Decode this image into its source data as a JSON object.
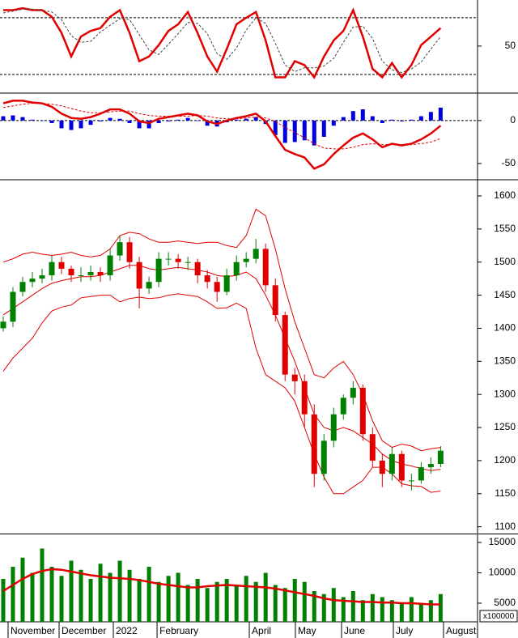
{
  "chart_data": [
    {
      "type": "line",
      "xlim": [
        -0.33,
        48.8
      ],
      "ylim": [
        2,
        97
      ],
      "yticks": [
        50
      ],
      "ref_lines": [
        80,
        20
      ],
      "series": [
        {
          "color": "#e00000",
          "style": "solid",
          "values": [
            88,
            88,
            90,
            88,
            88,
            81,
            64,
            39,
            60,
            66,
            69,
            81,
            88,
            64,
            34,
            39,
            51,
            66,
            73,
            86,
            64,
            39,
            23,
            47,
            73,
            80,
            86,
            56,
            17,
            17,
            34,
            30,
            17,
            39,
            56,
            66,
            88,
            60,
            26,
            17,
            32,
            17,
            30,
            51,
            60,
            69
          ]
        },
        {
          "color": "#444444",
          "style": "dashed",
          "values": [
            85,
            87,
            89,
            89,
            88,
            86,
            78,
            61,
            54,
            55,
            65,
            72,
            79,
            78,
            62,
            46,
            41,
            52,
            63,
            75,
            74,
            63,
            42,
            36,
            48,
            67,
            80,
            74,
            53,
            30,
            23,
            27,
            27,
            29,
            37,
            54,
            70,
            71,
            58,
            34,
            25,
            22,
            26,
            33,
            47,
            60
          ]
        }
      ]
    },
    {
      "type": "combo",
      "xlim": [
        -0.33,
        48.8
      ],
      "ylim": [
        -67,
        30
      ],
      "yticks": [
        0,
        -50
      ],
      "ref_lines": [
        0
      ],
      "bars": {
        "color": "#0000dd",
        "values": [
          5,
          6,
          4,
          1,
          0,
          -3,
          -9,
          -11,
          -9,
          -5,
          -1,
          3,
          2,
          -3,
          -9,
          -9,
          -3,
          -1,
          1,
          3,
          0,
          -6,
          -7,
          -2,
          1,
          2,
          4,
          -4,
          -17,
          -26,
          -25,
          -23,
          -29,
          -19,
          -6,
          4,
          11,
          13,
          5,
          -3,
          1,
          -1,
          1,
          5,
          10,
          15
        ]
      },
      "series": [
        {
          "color": "#e00000",
          "style": "solid",
          "values": [
            20,
            23,
            23,
            21,
            20,
            16,
            8,
            3,
            2,
            4,
            8,
            13,
            13,
            8,
            -1,
            -3,
            2,
            4,
            6,
            8,
            6,
            -1,
            -4,
            0,
            3,
            5,
            8,
            -1,
            -18,
            -34,
            -39,
            -43,
            -56,
            -51,
            -39,
            -29,
            -20,
            -15,
            -22,
            -31,
            -27,
            -29,
            -27,
            -22,
            -15,
            -6
          ]
        },
        {
          "color": "#e00000",
          "style": "dashed",
          "values": [
            15,
            17,
            19,
            20,
            20,
            19,
            17,
            14,
            11,
            9,
            9,
            10,
            11,
            11,
            8,
            6,
            5,
            5,
            5,
            5,
            6,
            5,
            3,
            2,
            2,
            3,
            4,
            3,
            -1,
            -8,
            -14,
            -20,
            -27,
            -32,
            -33,
            -33,
            -31,
            -28,
            -27,
            -28,
            -28,
            -28,
            -28,
            -27,
            -25,
            -21
          ]
        }
      ]
    },
    {
      "type": "candlestick",
      "xlim": [
        -0.33,
        48.8
      ],
      "ylim": [
        1091,
        1622
      ],
      "yticks": [
        1100,
        1150,
        1200,
        1250,
        1300,
        1350,
        1400,
        1450,
        1500,
        1550,
        1600
      ],
      "up_color": "#008000",
      "down_color": "#e00000",
      "open": [
        1400,
        1410,
        1455,
        1470,
        1475,
        1480,
        1500,
        1490,
        1480,
        1480,
        1485,
        1480,
        1510,
        1530,
        1500,
        1460,
        1470,
        1505,
        1505,
        1500,
        1500,
        1480,
        1470,
        1455,
        1480,
        1500,
        1505,
        1520,
        1465,
        1420,
        1330,
        1320,
        1270,
        1180,
        1230,
        1270,
        1295,
        1310,
        1240,
        1200,
        1180,
        1210,
        1170,
        1170,
        1190,
        1195
      ],
      "high": [
        1418,
        1462,
        1478,
        1485,
        1490,
        1510,
        1508,
        1495,
        1492,
        1495,
        1492,
        1520,
        1540,
        1538,
        1508,
        1478,
        1515,
        1515,
        1512,
        1508,
        1505,
        1488,
        1478,
        1490,
        1510,
        1515,
        1535,
        1528,
        1475,
        1425,
        1340,
        1330,
        1285,
        1240,
        1280,
        1300,
        1320,
        1315,
        1250,
        1210,
        1220,
        1215,
        1180,
        1198,
        1205,
        1222
      ],
      "low": [
        1395,
        1402,
        1448,
        1462,
        1468,
        1472,
        1482,
        1470,
        1470,
        1472,
        1470,
        1472,
        1502,
        1490,
        1430,
        1452,
        1462,
        1495,
        1490,
        1488,
        1468,
        1460,
        1440,
        1450,
        1472,
        1492,
        1498,
        1455,
        1410,
        1320,
        1300,
        1250,
        1160,
        1170,
        1220,
        1262,
        1285,
        1230,
        1190,
        1160,
        1170,
        1160,
        1155,
        1165,
        1180,
        1190
      ],
      "close": [
        1410,
        1455,
        1470,
        1475,
        1480,
        1500,
        1490,
        1480,
        1480,
        1485,
        1480,
        1510,
        1530,
        1500,
        1460,
        1470,
        1505,
        1505,
        1500,
        1500,
        1480,
        1470,
        1455,
        1480,
        1500,
        1505,
        1520,
        1465,
        1420,
        1330,
        1320,
        1270,
        1180,
        1230,
        1270,
        1295,
        1310,
        1240,
        1200,
        1180,
        1210,
        1170,
        1170,
        1190,
        1195,
        1215
      ],
      "series": [
        {
          "color": "#e00000",
          "style": "solid",
          "values": [
            1500,
            1505,
            1512,
            1515,
            1512,
            1510,
            1512,
            1515,
            1510,
            1508,
            1510,
            1520,
            1540,
            1545,
            1543,
            1535,
            1530,
            1530,
            1532,
            1530,
            1528,
            1530,
            1530,
            1525,
            1522,
            1540,
            1580,
            1570,
            1520,
            1460,
            1410,
            1370,
            1330,
            1325,
            1340,
            1350,
            1330,
            1300,
            1260,
            1230,
            1220,
            1225,
            1222,
            1215,
            1218,
            1220
          ]
        },
        {
          "color": "#e00000",
          "style": "solid",
          "values": [
            1420,
            1430,
            1440,
            1450,
            1460,
            1468,
            1472,
            1475,
            1478,
            1478,
            1480,
            1485,
            1490,
            1495,
            1495,
            1490,
            1488,
            1490,
            1492,
            1490,
            1488,
            1485,
            1480,
            1478,
            1480,
            1485,
            1475,
            1450,
            1420,
            1385,
            1350,
            1310,
            1270,
            1250,
            1245,
            1250,
            1245,
            1235,
            1225,
            1210,
            1200,
            1195,
            1192,
            1188,
            1185,
            1187
          ]
        },
        {
          "color": "#e00000",
          "style": "solid",
          "values": [
            1335,
            1355,
            1370,
            1385,
            1408,
            1426,
            1432,
            1435,
            1446,
            1448,
            1450,
            1450,
            1440,
            1445,
            1447,
            1445,
            1446,
            1450,
            1452,
            1450,
            1448,
            1440,
            1430,
            1431,
            1438,
            1430,
            1370,
            1330,
            1320,
            1310,
            1290,
            1250,
            1210,
            1175,
            1150,
            1150,
            1160,
            1170,
            1190,
            1190,
            1180,
            1165,
            1162,
            1161,
            1152,
            1154
          ]
        }
      ]
    },
    {
      "type": "combo",
      "xlim": [
        -0.33,
        48.8
      ],
      "ylim": [
        1933,
        16200
      ],
      "yticks": [
        5000,
        10000,
        15000
      ],
      "unit_label": "x100000",
      "bars": {
        "color": "#008000",
        "values": [
          9000,
          11000,
          12500,
          10000,
          14000,
          11000,
          9500,
          12000,
          10500,
          9000,
          11500,
          10000,
          12000,
          10500,
          9000,
          11000,
          8500,
          9500,
          10000,
          8000,
          9000,
          7500,
          8500,
          9000,
          8000,
          9500,
          8500,
          10000,
          8000,
          7500,
          9000,
          8500,
          7000,
          6500,
          7500,
          6000,
          7000,
          5500,
          6500,
          6000,
          5500,
          5000,
          6000,
          5000,
          5500,
          6500
        ]
      },
      "series": [
        {
          "color": "#e00000",
          "style": "solid",
          "values": [
            7000,
            8000,
            9000,
            9800,
            10300,
            10600,
            10500,
            10200,
            9900,
            9600,
            9400,
            9200,
            9100,
            9000,
            8800,
            8500,
            8200,
            8000,
            7800,
            7600,
            7600,
            7800,
            7900,
            8000,
            7900,
            7800,
            7700,
            7600,
            7400,
            7100,
            6800,
            6500,
            6200,
            5800,
            5500,
            5400,
            5300,
            5200,
            5200,
            5100,
            5100,
            5000,
            5000,
            4900,
            4800,
            4800
          ]
        }
      ],
      "xticks": [
        {
          "value": 0.5,
          "label": "November"
        },
        {
          "value": 5.75,
          "label": "December"
        },
        {
          "value": 11.33,
          "label": "2022"
        },
        {
          "value": 15.83,
          "label": "February"
        },
        {
          "value": 25.32,
          "label": "April"
        },
        {
          "value": 30.06,
          "label": "May"
        },
        {
          "value": 34.81,
          "label": "June"
        },
        {
          "value": 40.14,
          "label": "July"
        },
        {
          "value": 45.3,
          "label": "August"
        }
      ]
    }
  ]
}
